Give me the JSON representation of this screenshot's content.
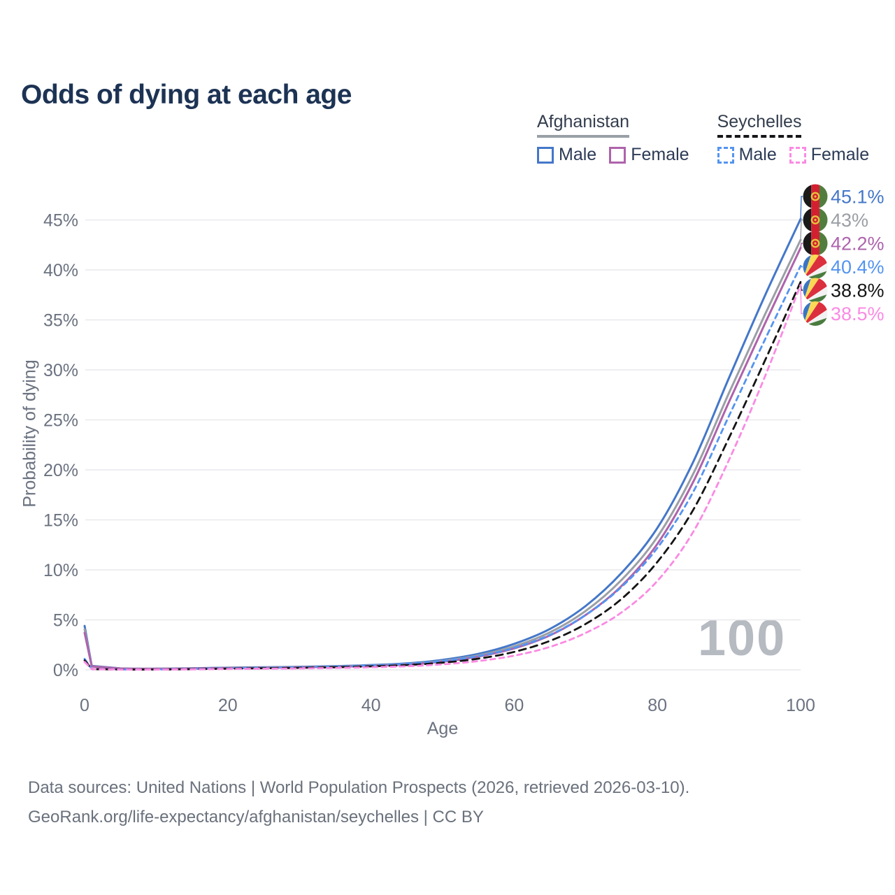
{
  "title": "Odds of dying at each age",
  "watermark": "100",
  "legend": {
    "groups": [
      {
        "name": "Afghanistan",
        "line_style": "solid",
        "underline_color": "#9aa0a6",
        "items": [
          {
            "label": "Male",
            "color": "#4477c9",
            "dashed": false
          },
          {
            "label": "Female",
            "color": "#ae63ac",
            "dashed": false
          }
        ]
      },
      {
        "name": "Seychelles",
        "line_style": "dashed",
        "underline_color": "#16161a",
        "items": [
          {
            "label": "Male",
            "color": "#5494f0",
            "dashed": true
          },
          {
            "label": "Female",
            "color": "#fb8ae3",
            "dashed": true
          }
        ]
      }
    ]
  },
  "footer": {
    "line1": "Data sources: United Nations | World Population Prospects (2026, retrieved 2026-03-10).",
    "line2": "GeoRank.org/life-expectancy/afghanistan/seychelles | CC BY"
  },
  "chart_data": {
    "type": "line",
    "title": "Odds of dying at each age",
    "xlabel": "Age",
    "ylabel": "Probability of dying",
    "units": "percent",
    "xlim": [
      0,
      100
    ],
    "ylim": [
      0,
      47
    ],
    "x_ticks": [
      0,
      20,
      40,
      60,
      80,
      100
    ],
    "y_ticks": [
      0,
      5,
      10,
      15,
      20,
      25,
      30,
      35,
      40,
      45
    ],
    "y_tick_suffix": "%",
    "grid": "horizontal",
    "legend_position": "top-right",
    "x": [
      0,
      1,
      5,
      10,
      15,
      20,
      25,
      30,
      35,
      40,
      45,
      50,
      55,
      60,
      65,
      70,
      75,
      80,
      85,
      90,
      95,
      100
    ],
    "series": [
      {
        "name": "Afghanistan Male",
        "country": "Afghanistan",
        "sex": "Male",
        "flag": "afghanistan",
        "color": "#4477c9",
        "dashed": false,
        "end_label": "45.1%",
        "values": [
          4.4,
          0.4,
          0.15,
          0.12,
          0.16,
          0.22,
          0.26,
          0.31,
          0.38,
          0.48,
          0.65,
          1.0,
          1.6,
          2.6,
          4.1,
          6.4,
          9.7,
          14.2,
          20.8,
          29.2,
          37.4,
          45.1
        ]
      },
      {
        "name": "Afghanistan Both sexes",
        "country": "Afghanistan",
        "sex": "Both",
        "flag": "afghanistan",
        "color": "#9b9fa5",
        "dashed": false,
        "end_label": "43%",
        "values": [
          4.05,
          0.37,
          0.14,
          0.11,
          0.14,
          0.2,
          0.24,
          0.28,
          0.34,
          0.44,
          0.59,
          0.9,
          1.45,
          2.35,
          3.75,
          5.9,
          9.0,
          13.3,
          19.6,
          27.7,
          35.5,
          43.0
        ]
      },
      {
        "name": "Afghanistan Female",
        "country": "Afghanistan",
        "sex": "Female",
        "flag": "afghanistan",
        "color": "#ae63ac",
        "dashed": false,
        "end_label": "42.2%",
        "values": [
          3.7,
          0.34,
          0.13,
          0.1,
          0.13,
          0.18,
          0.21,
          0.26,
          0.31,
          0.4,
          0.54,
          0.82,
          1.33,
          2.15,
          3.45,
          5.5,
          8.4,
          12.6,
          18.8,
          26.8,
          34.6,
          42.2
        ]
      },
      {
        "name": "Seychelles Male",
        "country": "Seychelles",
        "sex": "Male",
        "flag": "seychelles",
        "color": "#5494f0",
        "dashed": true,
        "end_label": "40.4%",
        "values": [
          1.1,
          0.09,
          0.04,
          0.04,
          0.09,
          0.16,
          0.21,
          0.26,
          0.33,
          0.44,
          0.6,
          0.88,
          1.38,
          2.2,
          3.5,
          5.5,
          8.3,
          12.2,
          17.8,
          25.4,
          33.0,
          40.4
        ]
      },
      {
        "name": "Seychelles Both sexes",
        "country": "Seychelles",
        "sex": "Both",
        "flag": "seychelles",
        "color": "#141414",
        "dashed": true,
        "end_label": "38.8%",
        "values": [
          0.95,
          0.08,
          0.035,
          0.035,
          0.07,
          0.12,
          0.16,
          0.2,
          0.26,
          0.35,
          0.48,
          0.72,
          1.12,
          1.8,
          2.9,
          4.6,
          7.1,
          10.8,
          16.0,
          23.2,
          30.9,
          38.8
        ]
      },
      {
        "name": "Seychelles Female",
        "country": "Seychelles",
        "sex": "Female",
        "flag": "seychelles",
        "color": "#fb8ae3",
        "dashed": true,
        "end_label": "38.5%",
        "values": [
          0.8,
          0.07,
          0.03,
          0.03,
          0.05,
          0.09,
          0.11,
          0.14,
          0.19,
          0.26,
          0.36,
          0.55,
          0.88,
          1.42,
          2.3,
          3.7,
          5.75,
          8.9,
          13.8,
          21.0,
          29.3,
          38.5
        ]
      }
    ],
    "flag_colors": {
      "afghanistan": {
        "black": "#1a1a1a",
        "red": "#d32030",
        "green": "#537d3e",
        "emblem": "#e8c23e"
      },
      "seychelles": {
        "blue": "#3a75c4",
        "yellow": "#fcd955",
        "red": "#dc2f3e",
        "white": "#f2f2f2",
        "green": "#4a7c3f"
      }
    }
  }
}
